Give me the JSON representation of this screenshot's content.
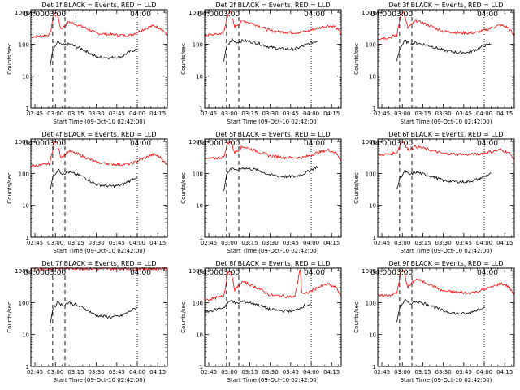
{
  "chart_data": {
    "type": "line",
    "layout": "3x3 grid",
    "shared": {
      "xlabel": "Start Time (09-Oct-10 02:42:00)",
      "ylabel": "Counts/sec",
      "x_ticks": [
        "02:45",
        "03:00",
        "03:15",
        "03:30",
        "03:45",
        "04:00",
        "04:15"
      ],
      "y_ticks": [
        "1",
        "10",
        "100",
        "1000"
      ],
      "yscale": "log",
      "ylim": [
        1,
        1200
      ],
      "xlim": [
        "02:42",
        "04:22"
      ],
      "markers": {
        "S": "03:00",
        "E": "04:00"
      },
      "vlines_dashed": [
        "02:58",
        "03:07"
      ],
      "vline_dotted": "04:00",
      "series_colors": {
        "events": "#000000",
        "lld": "#ff0000"
      }
    },
    "panels": [
      {
        "title": "Det 1f BLACK = Events, RED = LLD",
        "series": [
          {
            "name": "LLD",
            "x": [
              "02:42",
              "02:50",
              "02:56",
              "02:59",
              "03:01",
              "03:04",
              "03:10",
              "03:20",
              "03:30",
              "03:40",
              "03:48",
              "03:55",
              "04:05",
              "04:12",
              "04:18",
              "04:22"
            ],
            "values": [
              170,
              180,
              200,
              900,
              1000,
              300,
              500,
              350,
              220,
              200,
              190,
              190,
              300,
              380,
              300,
              180
            ]
          },
          {
            "name": "Events",
            "x": [
              "02:56",
              "02:58",
              "03:02",
              "03:05",
              "03:10",
              "03:20",
              "03:30",
              "03:40",
              "03:48",
              "03:55",
              "04:00"
            ],
            "values": [
              20,
              60,
              120,
              90,
              100,
              70,
              40,
              38,
              40,
              60,
              70
            ]
          }
        ]
      },
      {
        "title": "Det 2f BLACK = Events, RED = LLD",
        "series": [
          {
            "name": "LLD",
            "x": [
              "02:42",
              "02:50",
              "02:56",
              "02:59",
              "03:01",
              "03:04",
              "03:10",
              "03:20",
              "03:30",
              "03:40",
              "03:48",
              "03:55",
              "04:05",
              "04:12",
              "04:18",
              "04:22"
            ],
            "values": [
              190,
              200,
              230,
              900,
              1000,
              350,
              550,
              400,
              260,
              240,
              230,
              240,
              320,
              380,
              350,
              200
            ]
          },
          {
            "name": "Events",
            "x": [
              "02:56",
              "02:58",
              "03:02",
              "03:05",
              "03:10",
              "03:20",
              "03:30",
              "03:40",
              "03:48",
              "03:55",
              "04:00",
              "04:05"
            ],
            "values": [
              30,
              80,
              140,
              110,
              130,
              110,
              80,
              70,
              70,
              90,
              110,
              130
            ]
          }
        ]
      },
      {
        "title": "Det 3f BLACK = Events, RED = LLD",
        "series": [
          {
            "name": "LLD",
            "x": [
              "02:42",
              "02:50",
              "02:56",
              "02:59",
              "03:01",
              "03:04",
              "03:10",
              "03:20",
              "03:30",
              "03:40",
              "03:48",
              "03:55",
              "04:05",
              "04:12",
              "04:18",
              "04:22"
            ],
            "values": [
              150,
              160,
              190,
              900,
              1000,
              320,
              550,
              380,
              250,
              230,
              220,
              230,
              320,
              400,
              320,
              180
            ]
          },
          {
            "name": "Events",
            "x": [
              "02:56",
              "02:58",
              "03:02",
              "03:05",
              "03:10",
              "03:20",
              "03:30",
              "03:40",
              "03:48",
              "03:55",
              "04:00",
              "04:05"
            ],
            "values": [
              30,
              70,
              130,
              100,
              110,
              90,
              65,
              55,
              55,
              70,
              90,
              100
            ]
          }
        ]
      },
      {
        "title": "Det 4f BLACK = Events, RED = LLD",
        "series": [
          {
            "name": "LLD",
            "x": [
              "02:42",
              "02:50",
              "02:56",
              "02:59",
              "03:01",
              "03:04",
              "03:10",
              "03:20",
              "03:30",
              "03:40",
              "03:48",
              "03:55",
              "04:05",
              "04:12",
              "04:18",
              "04:22"
            ],
            "values": [
              170,
              180,
              210,
              900,
              1000,
              320,
              500,
              350,
              220,
              200,
              190,
              200,
              300,
              400,
              300,
              170
            ]
          },
          {
            "name": "Events",
            "x": [
              "02:56",
              "02:58",
              "03:02",
              "03:05",
              "03:10",
              "03:20",
              "03:30",
              "03:40",
              "03:48",
              "03:55",
              "04:00"
            ],
            "values": [
              30,
              80,
              130,
              100,
              110,
              80,
              45,
              40,
              42,
              60,
              80
            ]
          }
        ]
      },
      {
        "title": "Det 5f BLACK = Events, RED = LLD",
        "series": [
          {
            "name": "LLD",
            "x": [
              "02:42",
              "02:50",
              "02:56",
              "02:59",
              "03:01",
              "03:04",
              "03:10",
              "03:20",
              "03:30",
              "03:40",
              "03:48",
              "03:55",
              "04:05",
              "04:12",
              "04:18",
              "04:22"
            ],
            "values": [
              280,
              300,
              330,
              900,
              1000,
              450,
              700,
              500,
              350,
              320,
              310,
              320,
              450,
              550,
              450,
              250
            ]
          },
          {
            "name": "Events",
            "x": [
              "02:56",
              "02:58",
              "03:02",
              "03:05",
              "03:10",
              "03:20",
              "03:30",
              "03:40",
              "03:48",
              "03:55",
              "04:00",
              "04:05"
            ],
            "values": [
              30,
              90,
              160,
              120,
              150,
              130,
              90,
              80,
              80,
              100,
              130,
              170
            ]
          }
        ]
      },
      {
        "title": "Det 6f BLACK = Events, RED = LLD",
        "series": [
          {
            "name": "LLD",
            "x": [
              "02:42",
              "02:50",
              "02:56",
              "02:59",
              "03:01",
              "03:04",
              "03:10",
              "03:20",
              "03:30",
              "03:40",
              "03:48",
              "03:55",
              "04:05",
              "04:12",
              "04:18",
              "04:22"
            ],
            "values": [
              380,
              400,
              450,
              900,
              1000,
              550,
              700,
              550,
              420,
              400,
              390,
              400,
              480,
              550,
              450,
              280
            ]
          },
          {
            "name": "Events",
            "x": [
              "02:56",
              "02:58",
              "03:02",
              "03:05",
              "03:10",
              "03:20",
              "03:30",
              "03:40",
              "03:48",
              "03:55",
              "04:00",
              "04:05"
            ],
            "values": [
              30,
              70,
              120,
              90,
              110,
              85,
              60,
              55,
              55,
              65,
              80,
              100
            ]
          }
        ]
      },
      {
        "title": "Det 7f BLACK = Events, RED = LLD",
        "series": [
          {
            "name": "LLD",
            "x": [
              "02:42",
              "02:50",
              "02:56",
              "02:59",
              "03:01",
              "03:04",
              "03:10",
              "03:20",
              "03:30",
              "03:40",
              "03:48",
              "03:55",
              "04:05",
              "04:12",
              "04:18",
              "04:22"
            ],
            "values": [
              1100,
              1150,
              1150,
              1200,
              1200,
              1150,
              1200,
              1150,
              1150,
              1150,
              1150,
              1150,
              1150,
              1150,
              1150,
              1150
            ]
          },
          {
            "name": "Events",
            "x": [
              "02:56",
              "02:58",
              "03:02",
              "03:05",
              "03:10",
              "03:20",
              "03:30",
              "03:40",
              "03:48",
              "03:55",
              "04:00"
            ],
            "values": [
              20,
              60,
              110,
              80,
              100,
              70,
              40,
              35,
              38,
              55,
              70
            ]
          }
        ]
      },
      {
        "title": "Det 8f BLACK = Events, RED = LLD",
        "series": [
          {
            "name": "LLD",
            "x": [
              "02:42",
              "02:50",
              "02:56",
              "02:59",
              "03:01",
              "03:04",
              "03:10",
              "03:20",
              "03:30",
              "03:40",
              "03:48",
              "03:52",
              "03:53",
              "03:55",
              "04:05",
              "04:12",
              "04:18",
              "04:22"
            ],
            "values": [
              120,
              140,
              160,
              900,
              1000,
              250,
              450,
              300,
              170,
              160,
              150,
              1200,
              220,
              180,
              300,
              380,
              300,
              160
            ]
          },
          {
            "name": "Events",
            "x": [
              "02:42",
              "02:50",
              "02:56",
              "02:58",
              "03:02",
              "03:05",
              "03:10",
              "03:20",
              "03:30",
              "03:40",
              "03:48",
              "03:52",
              "03:55",
              "04:00"
            ],
            "values": [
              50,
              60,
              70,
              90,
              120,
              90,
              110,
              90,
              60,
              55,
              55,
              70,
              80,
              90
            ]
          }
        ]
      },
      {
        "title": "Det 9f BLACK = Events, RED = LLD",
        "series": [
          {
            "name": "LLD",
            "x": [
              "02:42",
              "02:50",
              "02:56",
              "02:59",
              "03:01",
              "03:04",
              "03:10",
              "03:20",
              "03:30",
              "03:40",
              "03:48",
              "03:55",
              "04:05",
              "04:12",
              "04:18",
              "04:22"
            ],
            "values": [
              160,
              170,
              200,
              900,
              1000,
              300,
              550,
              380,
              230,
              210,
              200,
              220,
              300,
              400,
              320,
              170
            ]
          },
          {
            "name": "Events",
            "x": [
              "02:56",
              "02:58",
              "03:02",
              "03:05",
              "03:10",
              "03:20",
              "03:30",
              "03:40",
              "03:48",
              "03:55",
              "04:00"
            ],
            "values": [
              25,
              70,
              120,
              90,
              110,
              85,
              55,
              45,
              45,
              60,
              75
            ]
          }
        ]
      }
    ]
  }
}
